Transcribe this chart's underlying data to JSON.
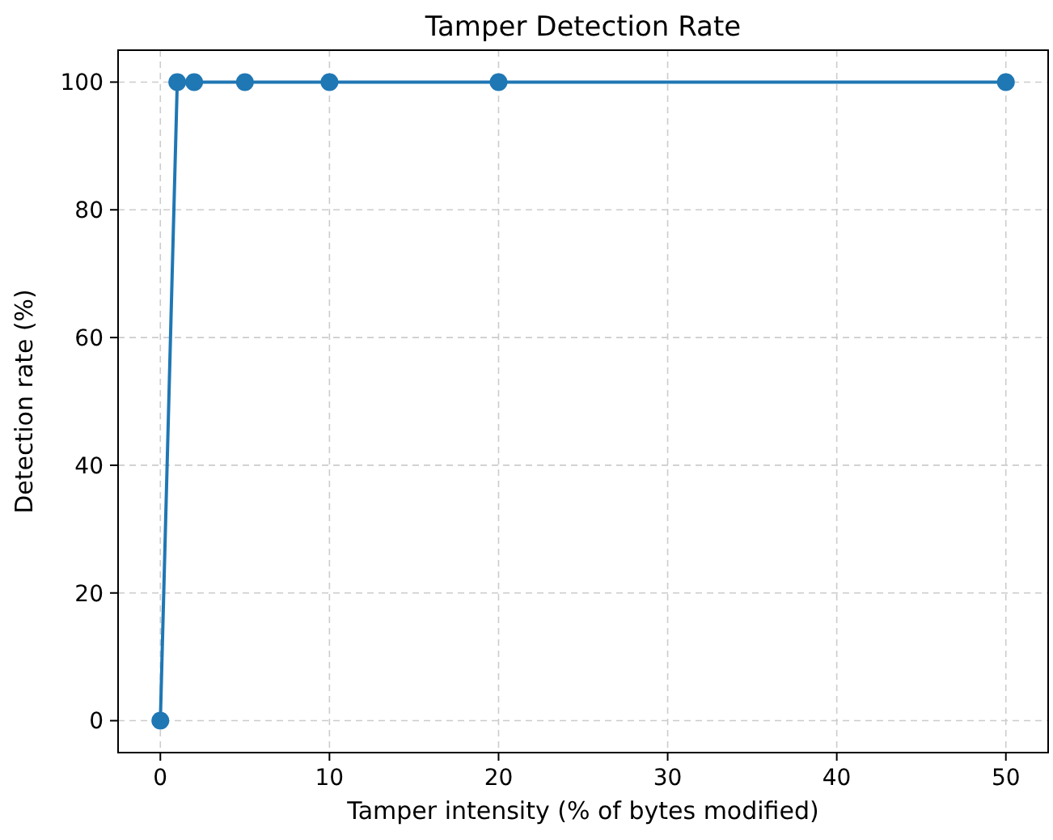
{
  "chart_data": {
    "type": "line",
    "title": "Tamper Detection Rate",
    "xlabel": "Tamper intensity (% of bytes modified)",
    "ylabel": "Detection rate (%)",
    "x": [
      0,
      1,
      2,
      5,
      10,
      20,
      50
    ],
    "series": [
      {
        "color": "#1f77b4",
        "values": [
          0,
          100,
          100,
          100,
          100,
          100,
          100
        ]
      }
    ],
    "xlim": [
      -2.5,
      52.5
    ],
    "xticks": [
      0,
      10,
      20,
      30,
      40,
      50
    ],
    "ylim": [
      -5,
      105
    ],
    "yticks": [
      0,
      20,
      40,
      60,
      80,
      100
    ],
    "grid": true,
    "marker": "circle",
    "line_style": "solid"
  }
}
